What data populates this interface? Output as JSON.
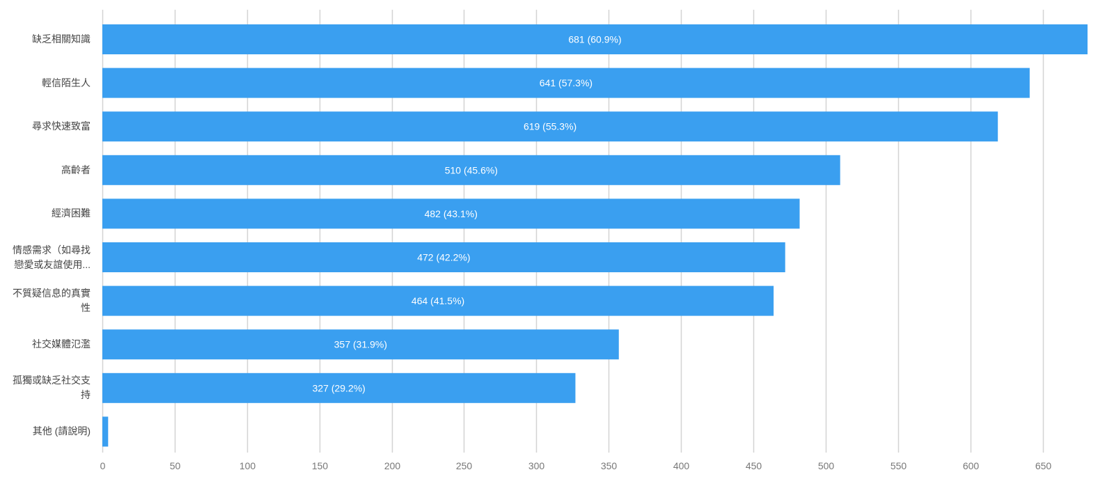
{
  "chart_data": {
    "type": "bar",
    "orientation": "horizontal",
    "categories": [
      "缺乏相關知識",
      "輕信陌生人",
      "尋求快速致富",
      "高齡者",
      "經濟困難",
      "情感需求（如尋找戀愛或友誼使用...",
      "不質疑信息的真實性",
      "社交媒體氾濫",
      "孤獨或缺乏社交支持",
      "其他 (請說明)"
    ],
    "category_lines": [
      [
        "缺乏相關知識"
      ],
      [
        "輕信陌生人"
      ],
      [
        "尋求快速致富"
      ],
      [
        "高齡者"
      ],
      [
        "經濟困難"
      ],
      [
        "情感需求（如尋找",
        "戀愛或友誼使用..."
      ],
      [
        "不質疑信息的真實",
        "性"
      ],
      [
        "社交媒體氾濫"
      ],
      [
        "孤獨或缺乏社交支",
        "持"
      ],
      [
        "其他 (請說明)"
      ]
    ],
    "values": [
      681,
      641,
      619,
      510,
      482,
      472,
      464,
      357,
      327,
      4
    ],
    "data_labels": [
      "681 (60.9%)",
      "641 (57.3%)",
      "619 (55.3%)",
      "510 (45.6%)",
      "482 (43.1%)",
      "472 (42.2%)",
      "464 (41.5%)",
      "357 (31.9%)",
      "327 (29.2%)",
      ""
    ],
    "x_ticks": [
      0,
      50,
      100,
      150,
      200,
      250,
      300,
      350,
      400,
      450,
      500,
      550,
      600,
      650
    ],
    "xlim": [
      0,
      681
    ],
    "title": "",
    "xlabel": "",
    "ylabel": "",
    "grid": true,
    "legend": "none",
    "colors": {
      "bar": "#3a9ff0",
      "grid": "#d3d3d3",
      "tick_text": "#777777",
      "category_text": "#444444",
      "data_label_text": "#ffffff"
    }
  }
}
